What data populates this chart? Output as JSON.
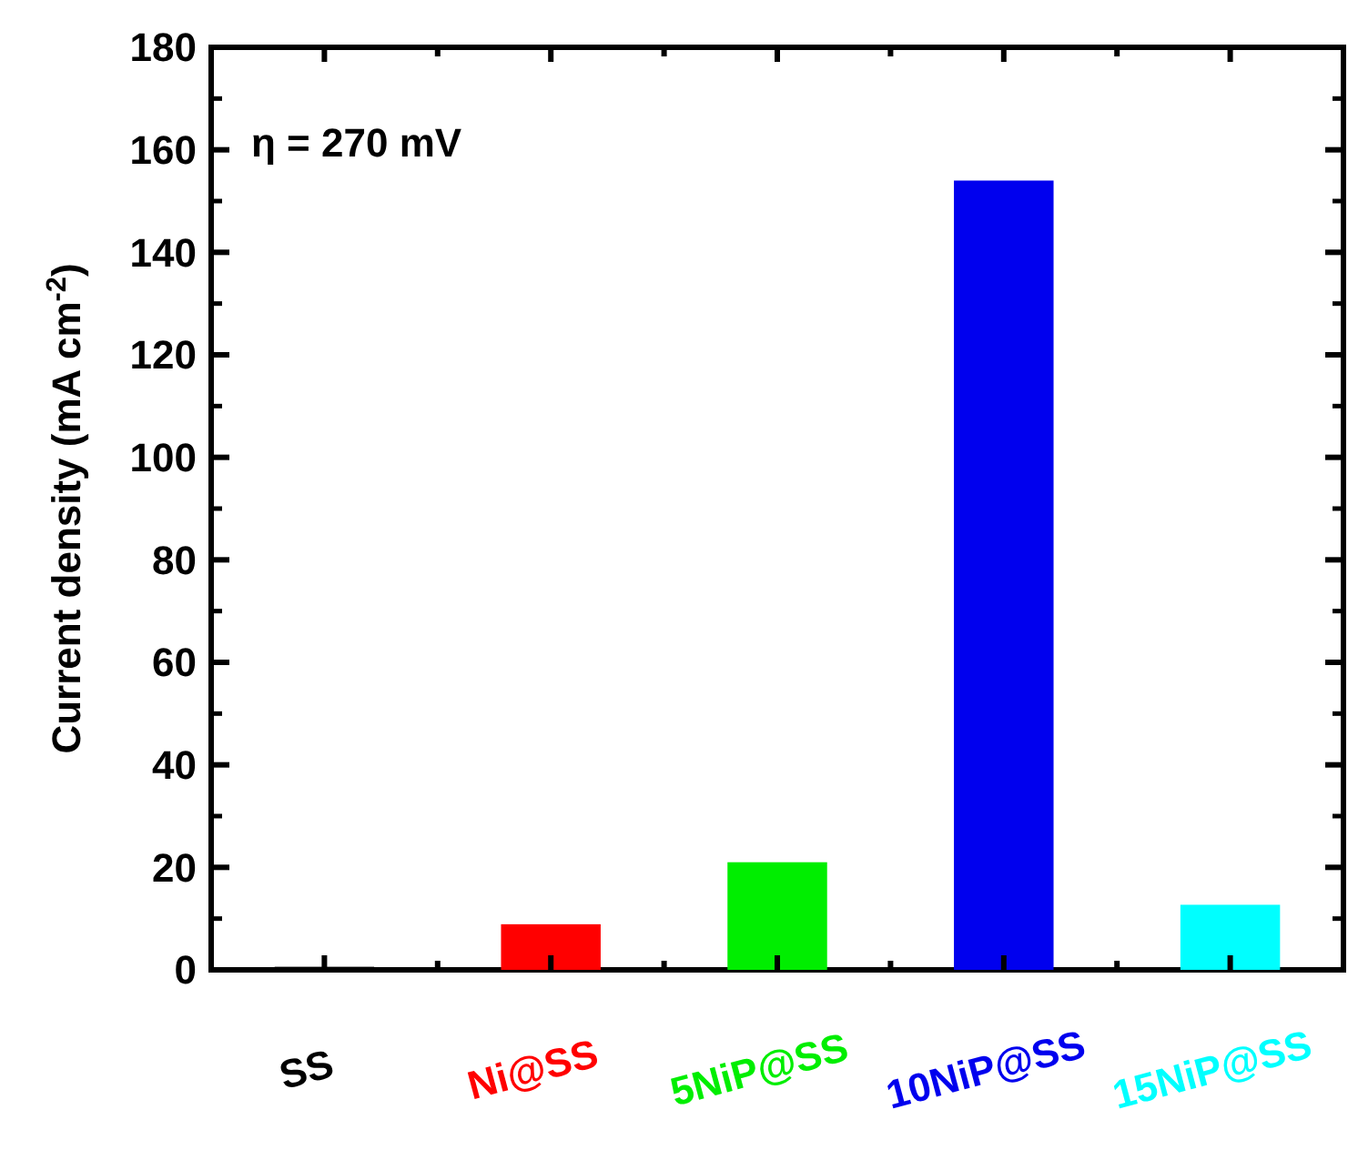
{
  "chart_data": {
    "type": "bar",
    "ylabel": "Current density (mA cm$^{-2}$)",
    "annotations": [
      "η = 270 mV"
    ],
    "categories": [
      "SS",
      "Ni@SS",
      "5NiP@SS",
      "10NiP@SS",
      "15NiP@SS"
    ],
    "values": [
      0.6,
      8.9,
      21,
      154,
      12.7
    ],
    "colors": [
      "#000000",
      "#ff0000",
      "#00ee00",
      "#0000ee",
      "#00ffff"
    ],
    "ylim": [
      0,
      180
    ],
    "yticks": [
      0,
      20,
      40,
      60,
      80,
      100,
      120,
      140,
      160,
      180
    ]
  }
}
